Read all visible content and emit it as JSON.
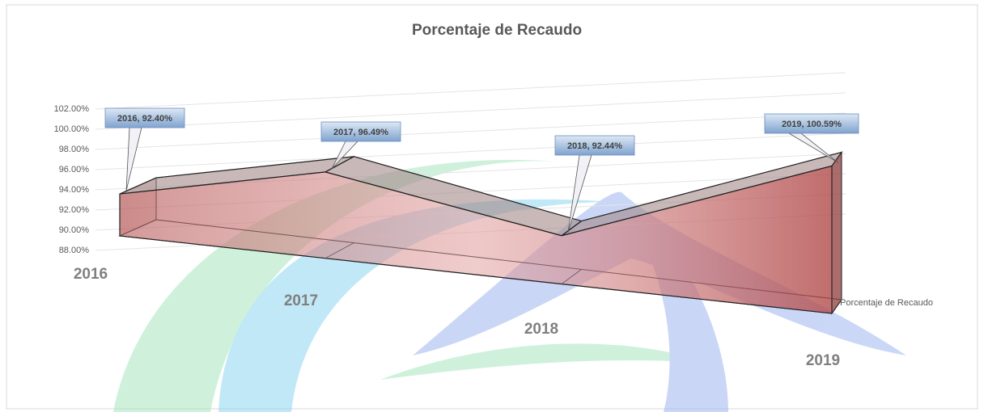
{
  "chart_data": {
    "type": "area3d",
    "title": "Porcentaje de Recaudo",
    "categories": [
      "2016",
      "2017",
      "2018",
      "2019"
    ],
    "series": [
      {
        "name": "Porcentaje de Recaudo",
        "color": "#c97a7a",
        "values": [
          92.4,
          96.49,
          92.44,
          100.59
        ],
        "value_labels": [
          "2016, 92.40%",
          "2017, 96.49%",
          "2018, 92.44%",
          "2019, 100.59%"
        ]
      }
    ],
    "ylim": [
      88,
      102
    ],
    "yticks": [
      {
        "value": 88,
        "label": "88.00%"
      },
      {
        "value": 90,
        "label": "90.00%"
      },
      {
        "value": 92,
        "label": "92.00%"
      },
      {
        "value": 94,
        "label": "94.00%"
      },
      {
        "value": 96,
        "label": "96.00%"
      },
      {
        "value": 98,
        "label": "98.00%"
      },
      {
        "value": 100,
        "label": "100.00%"
      },
      {
        "value": 102,
        "label": "102.00%"
      }
    ],
    "grid": true
  }
}
